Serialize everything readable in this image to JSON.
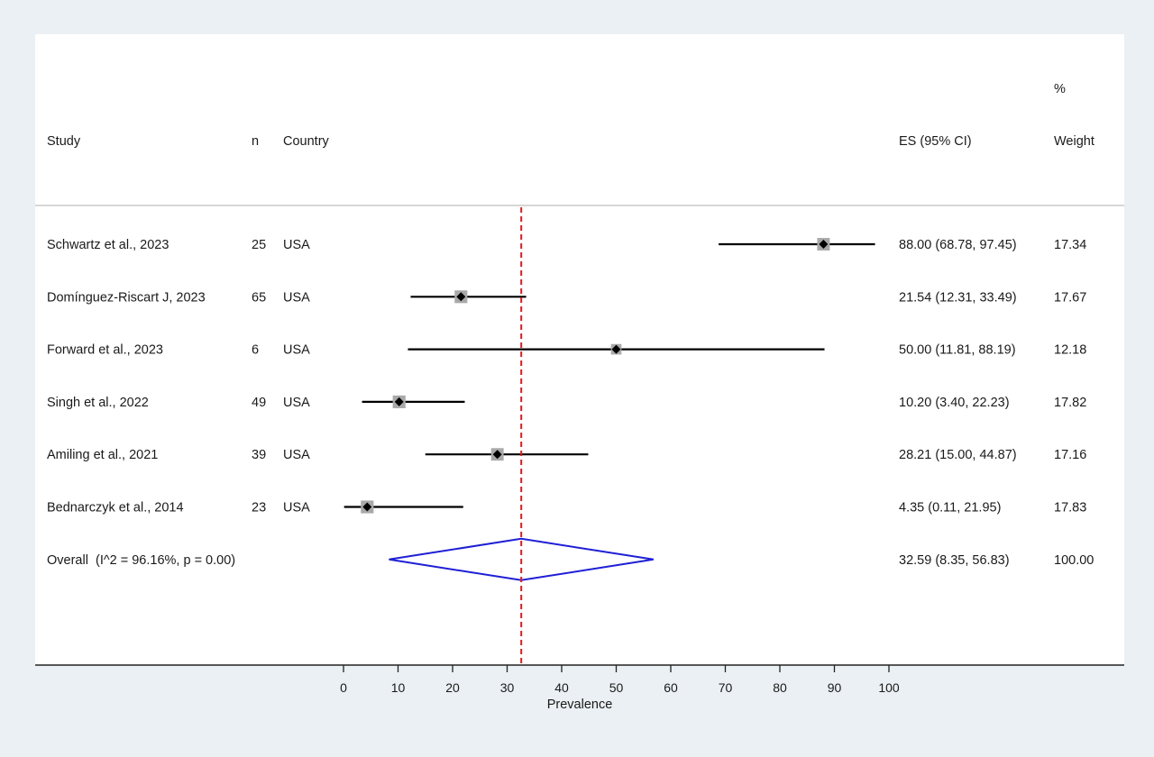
{
  "chart_data": {
    "type": "forest",
    "header": {
      "study": "Study",
      "n": "n",
      "country": "Country",
      "es": "ES (95% CI)",
      "weight_top": "%",
      "weight": "Weight"
    },
    "xlabel": "Prevalence",
    "xlim": [
      0,
      100
    ],
    "xticks": [
      0,
      10,
      20,
      30,
      40,
      50,
      60,
      70,
      80,
      90,
      100
    ],
    "reference_line": 32.59,
    "studies": [
      {
        "study": "Schwartz et al., 2023",
        "n": "25",
        "country": "USA",
        "es": 88.0,
        "lo": 68.78,
        "hi": 97.45,
        "es_text": "88.00 (68.78, 97.45)",
        "weight": "17.34"
      },
      {
        "study": "Domínguez-Riscart J, 2023",
        "n": "65",
        "country": "USA",
        "es": 21.54,
        "lo": 12.31,
        "hi": 33.49,
        "es_text": "21.54 (12.31, 33.49)",
        "weight": "17.67"
      },
      {
        "study": "Forward et al., 2023",
        "n": "6",
        "country": "USA",
        "es": 50.0,
        "lo": 11.81,
        "hi": 88.19,
        "es_text": "50.00 (11.81, 88.19)",
        "weight": "12.18"
      },
      {
        "study": "Singh et al., 2022",
        "n": "49",
        "country": "USA",
        "es": 10.2,
        "lo": 3.4,
        "hi": 22.23,
        "es_text": "10.20 (3.40, 22.23)",
        "weight": "17.82"
      },
      {
        "study": "Amiling et al., 2021",
        "n": "39",
        "country": "USA",
        "es": 28.21,
        "lo": 15.0,
        "hi": 44.87,
        "es_text": "28.21 (15.00, 44.87)",
        "weight": "17.16"
      },
      {
        "study": "Bednarczyk et al., 2014",
        "n": "23",
        "country": "USA",
        "es": 4.35,
        "lo": 0.11,
        "hi": 21.95,
        "es_text": "4.35 (0.11, 21.95)",
        "weight": "17.83"
      }
    ],
    "overall": {
      "label": "Overall  (I^2 = 96.16%, p = 0.00)",
      "es": 32.59,
      "lo": 8.35,
      "hi": 56.83,
      "es_text": "32.59 (8.35, 56.83)",
      "weight": "100.00"
    },
    "colors": {
      "reference_line": "#e31a1c",
      "diamond": "#1f1fd6",
      "ci_line": "#000000",
      "weight_box": "#a9a9a9"
    }
  }
}
